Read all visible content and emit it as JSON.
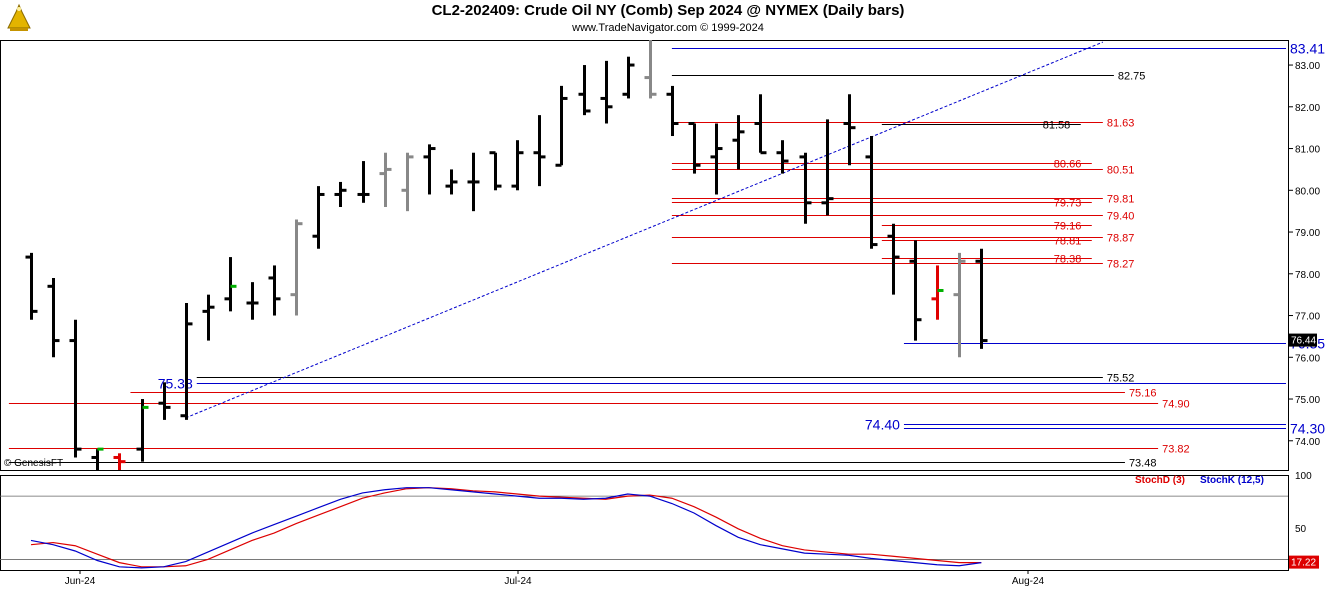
{
  "header": {
    "title": "CL2-202409:  Crude Oil NY (Comb) Sep 2024 @ NYMEX  (Daily bars)",
    "subtitle": "www.TradeNavigator.com © 1999-2024",
    "credit": "© GenesisFT"
  },
  "colors": {
    "bar": "#000000",
    "bar_gray": "#888888",
    "bar_red": "#e00000",
    "bar_green": "#00b000",
    "red_level": "#dd0000",
    "blue_level": "#0000cc",
    "black_level": "#000000",
    "stoch_d": "#dd0000",
    "stoch_k": "#0000cc"
  },
  "chart_data": [
    {
      "type": "ohlc",
      "ylim": [
        73.3,
        83.6
      ],
      "y_ticks": [
        "83.00",
        "82.00",
        "81.00",
        "80.00",
        "79.00",
        "78.00",
        "77.00",
        "76.00",
        "75.00",
        "74.00"
      ],
      "x_ticks": [
        "Jun-24",
        "Jul-24",
        "Aug-24"
      ],
      "last_price_label": "76.44",
      "bars": [
        {
          "o": 78.4,
          "h": 78.5,
          "l": 76.9,
          "c": 77.1,
          "color": "black"
        },
        {
          "o": 77.7,
          "h": 77.9,
          "l": 76.0,
          "c": 76.4,
          "color": "black"
        },
        {
          "o": 76.4,
          "h": 76.9,
          "l": 73.6,
          "c": 73.8,
          "color": "black"
        },
        {
          "o": 73.6,
          "h": 73.8,
          "l": 73.3,
          "c": 73.8,
          "color": "black",
          "close_color": "green"
        },
        {
          "o": 73.6,
          "h": 73.7,
          "l": 73.3,
          "c": 73.5,
          "color": "red"
        },
        {
          "o": 73.8,
          "h": 75.0,
          "l": 73.5,
          "c": 74.8,
          "color": "black",
          "close_color": "green"
        },
        {
          "o": 74.9,
          "h": 75.4,
          "l": 74.5,
          "c": 74.8,
          "color": "black"
        },
        {
          "o": 74.6,
          "h": 77.3,
          "l": 74.5,
          "c": 76.8,
          "color": "black"
        },
        {
          "o": 77.1,
          "h": 77.5,
          "l": 76.4,
          "c": 77.2,
          "color": "black"
        },
        {
          "o": 77.4,
          "h": 78.4,
          "l": 77.1,
          "c": 77.7,
          "color": "black",
          "close_color": "green"
        },
        {
          "o": 77.3,
          "h": 77.8,
          "l": 76.9,
          "c": 77.3,
          "color": "black"
        },
        {
          "o": 77.9,
          "h": 78.2,
          "l": 77.0,
          "c": 77.4,
          "color": "black"
        },
        {
          "o": 77.5,
          "h": 79.3,
          "l": 77.0,
          "c": 79.2,
          "color": "gray"
        },
        {
          "o": 78.9,
          "h": 80.1,
          "l": 78.6,
          "c": 79.9,
          "color": "black"
        },
        {
          "o": 79.9,
          "h": 80.2,
          "l": 79.6,
          "c": 80.0,
          "color": "black"
        },
        {
          "o": 79.9,
          "h": 80.7,
          "l": 79.7,
          "c": 79.9,
          "color": "black"
        },
        {
          "o": 80.4,
          "h": 80.9,
          "l": 79.6,
          "c": 80.5,
          "color": "gray"
        },
        {
          "o": 80.0,
          "h": 80.9,
          "l": 79.5,
          "c": 80.8,
          "color": "gray"
        },
        {
          "o": 80.8,
          "h": 81.1,
          "l": 79.9,
          "c": 81.0,
          "color": "black"
        },
        {
          "o": 80.1,
          "h": 80.5,
          "l": 79.9,
          "c": 80.2,
          "color": "black"
        },
        {
          "o": 80.2,
          "h": 80.9,
          "l": 79.5,
          "c": 80.2,
          "color": "black"
        },
        {
          "o": 80.9,
          "h": 80.9,
          "l": 80.0,
          "c": 80.1,
          "color": "black"
        },
        {
          "o": 80.1,
          "h": 81.2,
          "l": 80.0,
          "c": 80.9,
          "color": "black"
        },
        {
          "o": 80.9,
          "h": 81.8,
          "l": 80.1,
          "c": 80.8,
          "color": "black"
        },
        {
          "o": 80.6,
          "h": 82.5,
          "l": 80.6,
          "c": 82.2,
          "color": "black"
        },
        {
          "o": 82.3,
          "h": 83.0,
          "l": 81.8,
          "c": 81.9,
          "color": "black"
        },
        {
          "o": 82.2,
          "h": 83.1,
          "l": 81.6,
          "c": 82.0,
          "color": "black"
        },
        {
          "o": 82.3,
          "h": 83.2,
          "l": 82.2,
          "c": 83.0,
          "color": "black"
        },
        {
          "o": 82.7,
          "h": 83.6,
          "l": 82.2,
          "c": 82.3,
          "color": "gray"
        },
        {
          "o": 82.3,
          "h": 82.5,
          "l": 81.3,
          "c": 81.6,
          "color": "black"
        },
        {
          "o": 81.6,
          "h": 81.6,
          "l": 80.4,
          "c": 80.6,
          "color": "black"
        },
        {
          "o": 80.8,
          "h": 81.6,
          "l": 79.9,
          "c": 81.0,
          "color": "black"
        },
        {
          "o": 81.2,
          "h": 81.8,
          "l": 80.5,
          "c": 81.4,
          "color": "black"
        },
        {
          "o": 81.6,
          "h": 82.3,
          "l": 80.9,
          "c": 80.9,
          "color": "black"
        },
        {
          "o": 80.9,
          "h": 81.2,
          "l": 80.4,
          "c": 80.7,
          "color": "black"
        },
        {
          "o": 80.8,
          "h": 80.9,
          "l": 79.2,
          "c": 79.7,
          "color": "black"
        },
        {
          "o": 79.7,
          "h": 81.7,
          "l": 79.4,
          "c": 79.8,
          "color": "black"
        },
        {
          "o": 81.6,
          "h": 82.3,
          "l": 80.6,
          "c": 81.5,
          "color": "black"
        },
        {
          "o": 80.8,
          "h": 81.3,
          "l": 78.6,
          "c": 78.7,
          "color": "black"
        },
        {
          "o": 78.9,
          "h": 79.2,
          "l": 77.5,
          "c": 78.4,
          "color": "black"
        },
        {
          "o": 78.3,
          "h": 78.8,
          "l": 76.4,
          "c": 76.9,
          "color": "black"
        },
        {
          "o": 77.4,
          "h": 78.2,
          "l": 76.9,
          "c": 77.6,
          "color": "red",
          "close_color": "green"
        },
        {
          "o": 77.5,
          "h": 78.5,
          "l": 76.0,
          "c": 78.3,
          "color": "gray"
        },
        {
          "o": 78.3,
          "h": 78.6,
          "l": 76.2,
          "c": 76.4,
          "color": "black"
        }
      ],
      "levels": [
        {
          "value": 83.41,
          "label": "83.41",
          "color": "blue",
          "start": 29,
          "end": 60,
          "label_side": "far",
          "big": true
        },
        {
          "value": 82.75,
          "label": "82.75",
          "color": "black",
          "start": 29,
          "end": 49,
          "label_side": "end",
          "big": false
        },
        {
          "value": 81.63,
          "label": "81.63",
          "color": "red",
          "start": 29,
          "end": 48.5,
          "label_side": "far_red",
          "big": false
        },
        {
          "value": 81.58,
          "label": "81.58",
          "color": "black",
          "start": 38.5,
          "end": 47.5,
          "label_side": "end_inner",
          "big": false
        },
        {
          "value": 80.66,
          "label": "80.66",
          "color": "red",
          "start": 29,
          "end": 48,
          "label_side": "end_inner_red",
          "big": false
        },
        {
          "value": 80.51,
          "label": "80.51",
          "color": "red",
          "start": 29,
          "end": 48.5,
          "label_side": "far_red",
          "big": false
        },
        {
          "value": 79.81,
          "label": "79.81",
          "color": "red",
          "start": 29,
          "end": 48.5,
          "label_side": "far_red",
          "big": false
        },
        {
          "value": 79.73,
          "label": "79.73",
          "color": "red",
          "start": 29,
          "end": 48,
          "label_side": "end_inner_red",
          "big": false
        },
        {
          "value": 79.4,
          "label": "79.40",
          "color": "red",
          "start": 29,
          "end": 48.5,
          "label_side": "far_red",
          "big": false
        },
        {
          "value": 79.16,
          "label": "79.16",
          "color": "red",
          "start": 38.5,
          "end": 48,
          "label_side": "end_inner_red",
          "big": false
        },
        {
          "value": 78.87,
          "label": "78.87",
          "color": "red",
          "start": 29,
          "end": 48.5,
          "label_side": "far_red",
          "big": false
        },
        {
          "value": 78.81,
          "label": "78.81",
          "color": "red",
          "start": 38.5,
          "end": 48,
          "label_side": "end_inner_red",
          "big": false
        },
        {
          "value": 78.38,
          "label": "78.38",
          "color": "red",
          "start": 38.5,
          "end": 48,
          "label_side": "end_inner_red",
          "big": false
        },
        {
          "value": 78.27,
          "label": "78.27",
          "color": "red",
          "start": 29,
          "end": 48.5,
          "label_side": "far_red",
          "big": false
        },
        {
          "value": 76.35,
          "label": "76.35",
          "color": "blue",
          "start": 39.5,
          "end": 58,
          "label_side": "far",
          "big": true
        },
        {
          "value": 75.52,
          "label": "75.52",
          "color": "black",
          "start": 7.5,
          "end": 48.5,
          "label_side": "end",
          "big": false
        },
        {
          "value": 75.38,
          "label": "75.38",
          "color": "blue",
          "start": 7.5,
          "end": 58,
          "label_side": "mid",
          "big": true
        },
        {
          "value": 75.16,
          "label": "75.16",
          "color": "red",
          "start": 4.5,
          "end": 49.5,
          "label_side": "end_red",
          "big": false
        },
        {
          "value": 74.9,
          "label": "74.90",
          "color": "red",
          "start": -1,
          "end": 51,
          "label_side": "end_red",
          "big": false
        },
        {
          "value": 74.4,
          "label": "74.40",
          "color": "blue",
          "start": 39.5,
          "end": 58,
          "label_side": "mid",
          "big": true
        },
        {
          "value": 74.3,
          "label": "74.30",
          "color": "blue",
          "start": 39.5,
          "end": 58,
          "label_side": "far",
          "big": true
        },
        {
          "value": 73.82,
          "label": "73.82",
          "color": "red",
          "start": -1,
          "end": 51,
          "label_side": "end_red",
          "big": false
        },
        {
          "value": 73.48,
          "label": "73.48",
          "color": "black",
          "start": -1,
          "end": 49.5,
          "label_side": "end",
          "big": false
        }
      ],
      "trendline": {
        "x1": 7,
        "y1": 74.55,
        "x2": 48.5,
        "y2": 83.55
      }
    },
    {
      "type": "line",
      "ylim": [
        10,
        100
      ],
      "y_ticks": [
        "100",
        "50"
      ],
      "last_value_label": "17.22",
      "series": [
        {
          "name": "StochD (3)",
          "color": "red",
          "values": [
            34,
            36,
            33,
            25,
            17,
            13,
            13,
            14,
            20,
            29,
            38,
            45,
            54,
            62,
            70,
            78,
            83,
            87,
            88,
            87,
            85,
            84,
            82,
            80,
            79,
            78,
            77,
            80,
            81,
            78,
            70,
            60,
            49,
            40,
            33,
            29,
            27,
            25,
            25,
            23,
            21,
            19,
            17,
            17
          ]
        },
        {
          "name": "StochK (12,5)",
          "color": "blue",
          "values": [
            38,
            34,
            28,
            19,
            13,
            12,
            13,
            18,
            27,
            36,
            45,
            53,
            61,
            69,
            77,
            83,
            86,
            88,
            88,
            86,
            84,
            82,
            80,
            78,
            78,
            77,
            78,
            82,
            80,
            73,
            64,
            52,
            41,
            34,
            30,
            26,
            25,
            24,
            21,
            19,
            17,
            15,
            14,
            17
          ]
        }
      ]
    }
  ]
}
